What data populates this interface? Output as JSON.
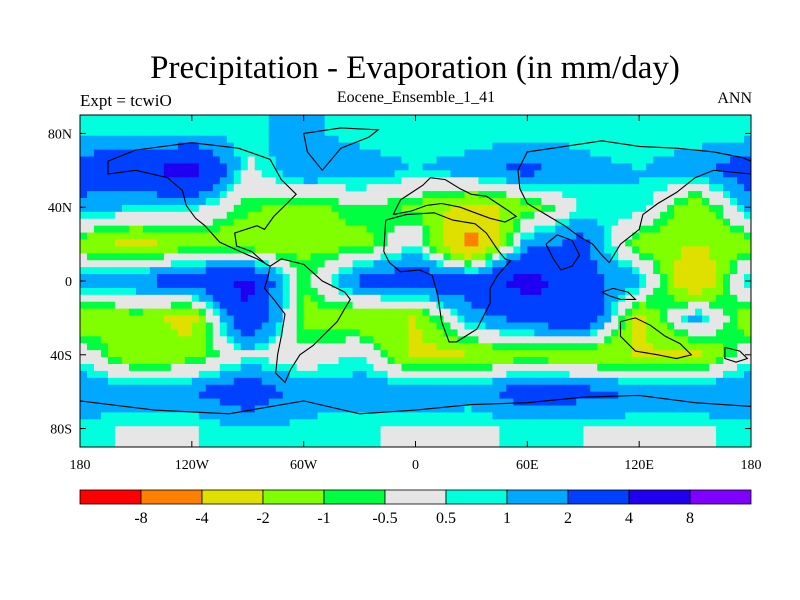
{
  "title": "Precipitation - Evaporation (in mm/day)",
  "left_string": "Expt = tcwiO",
  "center_string": "Eocene_Ensemble_1_41",
  "right_string": "ANN",
  "lat_ticks": [
    "80N",
    "40N",
    "0",
    "40S",
    "80S"
  ],
  "lon_ticks": [
    "180",
    "120W",
    "60W",
    "0",
    "60E",
    "120E",
    "180"
  ],
  "colorbar": {
    "colors": [
      "#ff0000",
      "#ff8000",
      "#e0e000",
      "#80ff00",
      "#00ff40",
      "#e6e6e6",
      "#00ffdd",
      "#00a8ff",
      "#0040ff",
      "#2000f0",
      "#8000ff"
    ],
    "labels": [
      "-8",
      "-4",
      "-2",
      "-1",
      "-0.5",
      "0.5",
      "1",
      "2",
      "4",
      "8"
    ]
  },
  "chart_data": {
    "type": "heatmap",
    "title": "Precipitation - Evaporation (in mm/day)",
    "units": "mm/day",
    "x_range": [
      -180,
      180
    ],
    "y_range": [
      -90,
      90
    ],
    "xticks": [
      "180",
      "120W",
      "60W",
      "0",
      "60E",
      "120E",
      "180"
    ],
    "yticks": [
      "80N",
      "40N",
      "0",
      "40S",
      "80S"
    ],
    "contour_levels": [
      -8,
      -4,
      -2,
      -1,
      -0.5,
      0.5,
      1,
      2,
      4,
      8
    ],
    "lon": [
      -180,
      -150,
      -120,
      -90,
      -60,
      -30,
      0,
      30,
      60,
      90,
      120,
      150,
      180
    ],
    "lat": [
      80,
      60,
      40,
      20,
      0,
      -20,
      -40,
      -60,
      -80
    ],
    "values": [
      [
        0.7,
        0.8,
        0.6,
        0.9,
        1.2,
        0.7,
        0.6,
        0.5,
        0.6,
        0.8,
        0.7,
        0.6,
        0.7
      ],
      [
        3.0,
        3.5,
        5.0,
        0.2,
        2.0,
        1.5,
        1.0,
        1.5,
        2.5,
        1.2,
        1.0,
        1.5,
        3.0
      ],
      [
        1.5,
        1.0,
        0.8,
        -0.8,
        -1.5,
        -0.5,
        -1.2,
        -2.5,
        -1.5,
        0.6,
        1.0,
        -2.0,
        1.5
      ],
      [
        -1.5,
        -2.5,
        -1.5,
        -2.0,
        -1.2,
        -1.5,
        0.5,
        -5.0,
        1.5,
        2.5,
        -1.5,
        -2.0,
        -1.5
      ],
      [
        1.5,
        2.0,
        3.0,
        4.5,
        -1.0,
        2.5,
        3.0,
        3.0,
        5.0,
        2.5,
        1.5,
        -4.0,
        1.5
      ],
      [
        -2.0,
        -1.5,
        -2.5,
        4.0,
        -1.2,
        -2.0,
        -2.0,
        1.5,
        2.5,
        4.0,
        -2.5,
        1.5,
        -2.0
      ],
      [
        0.3,
        -2.0,
        -1.5,
        0.4,
        -0.3,
        0.6,
        -2.5,
        -2.0,
        -1.5,
        -2.0,
        -2.0,
        -2.5,
        0.3
      ],
      [
        2.0,
        1.5,
        2.0,
        3.0,
        1.5,
        1.5,
        2.0,
        1.5,
        3.0,
        2.5,
        2.0,
        2.0,
        2.0
      ],
      [
        0.7,
        0.4,
        0.4,
        1.0,
        0.8,
        0.6,
        0.3,
        0.4,
        0.6,
        0.5,
        0.4,
        0.4,
        0.7
      ]
    ]
  }
}
